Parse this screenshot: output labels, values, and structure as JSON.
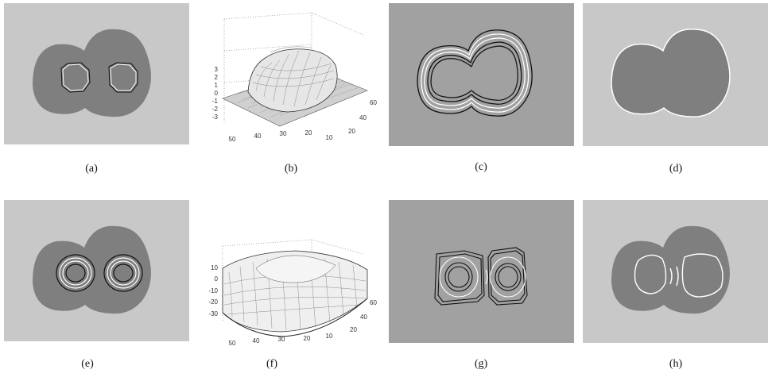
{
  "captions": {
    "a": "(a)",
    "b": "(b)",
    "c": "(c)",
    "d": "(d)",
    "e": "(e)",
    "f": "(f)",
    "g": "(g)",
    "h": "(h)"
  },
  "plot_b": {
    "z_ticks": [
      "3",
      "2",
      "1",
      "0",
      "-1",
      "-2",
      "-3"
    ],
    "x_ticks": [
      "50",
      "40",
      "30",
      "20",
      "10"
    ],
    "y_ticks": [
      "60",
      "40",
      "20"
    ]
  },
  "plot_f": {
    "z_ticks": [
      "10",
      "0",
      "-10",
      "-20",
      "-30"
    ],
    "x_ticks": [
      "50",
      "40",
      "30",
      "20",
      "10"
    ],
    "y_ticks": [
      "60",
      "40",
      "20"
    ]
  },
  "colors": {
    "light_bg": "#c8c8c8",
    "dark_region": "#7f7f7f",
    "mid_gray": "#a1a1a1"
  }
}
